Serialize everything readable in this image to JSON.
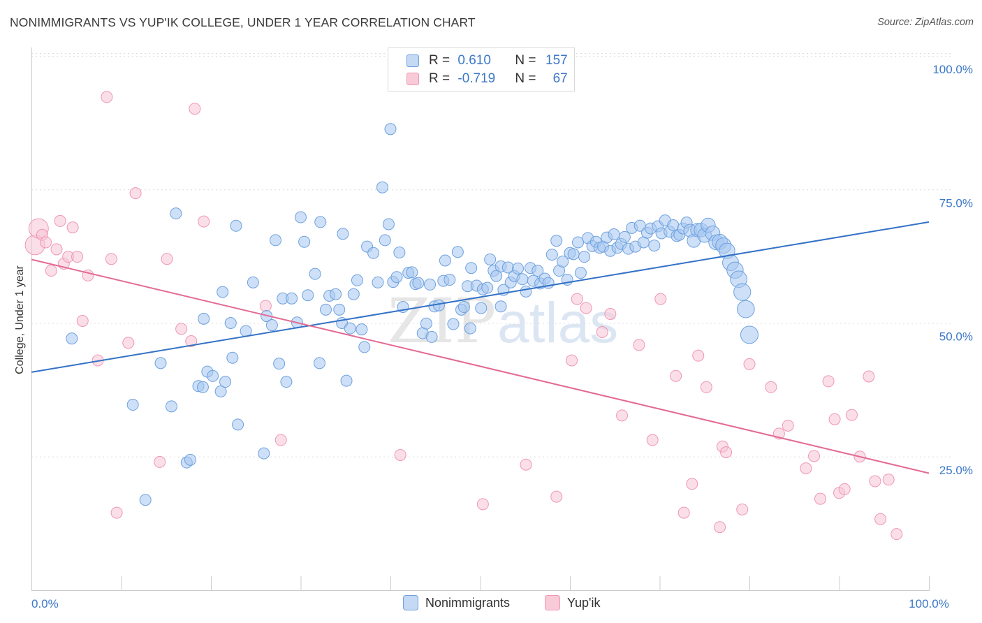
{
  "title": "NONIMMIGRANTS VS YUP'IK COLLEGE, UNDER 1 YEAR CORRELATION CHART",
  "source": "Source: ZipAtlas.com",
  "watermark": {
    "zip": "ZIP",
    "atlas": "atlas"
  },
  "legend": {
    "rows": [
      {
        "r_label": "R = ",
        "r_value": "0.610",
        "n_label": "N = ",
        "n_value": "157",
        "color": "#6ea1de"
      },
      {
        "r_label": "R = ",
        "r_value": "-0.719",
        "n_label": "N = ",
        "n_value": "67",
        "color": "#ef97b2"
      }
    ]
  },
  "bottom_legend": [
    {
      "label": "Nonimmigrants",
      "color": "#6ea1de"
    },
    {
      "label": "Yup'ik",
      "color": "#ef97b2"
    }
  ],
  "chart_data": {
    "type": "scatter",
    "title": "NONIMMIGRANTS VS YUP'IK COLLEGE, UNDER 1 YEAR CORRELATION CHART",
    "xlabel": "",
    "ylabel": "College, Under 1 year",
    "xlim": [
      0,
      100
    ],
    "ylim": [
      0,
      100
    ],
    "x_tick_labels": [
      {
        "value": 0,
        "label": "0.0%"
      },
      {
        "value": 100,
        "label": "100.0%"
      }
    ],
    "y_tick_labels": [
      {
        "value": 25,
        "label": "25.0%"
      },
      {
        "value": 50,
        "label": "50.0%"
      },
      {
        "value": 75,
        "label": "75.0%"
      },
      {
        "value": 100,
        "label": "100.0%"
      }
    ],
    "grid": "horizontal dashed",
    "legend_position": "top-center",
    "series": [
      {
        "name": "Nonimmigrants",
        "color": "#6ea1de",
        "trend": {
          "x": [
            0,
            100
          ],
          "y": [
            40.8,
            68.9
          ]
        },
        "points": [
          [
            4.5,
            47.1
          ],
          [
            11.3,
            34.7
          ],
          [
            12.7,
            16.9
          ],
          [
            14.4,
            42.5
          ],
          [
            15.6,
            34.4
          ],
          [
            16.1,
            70.5
          ],
          [
            17.3,
            23.9
          ],
          [
            17.7,
            24.4
          ],
          [
            18.6,
            38.2
          ],
          [
            19.1,
            38.0
          ],
          [
            19.2,
            50.8
          ],
          [
            19.6,
            40.9
          ],
          [
            20.2,
            40.1
          ],
          [
            21.1,
            37.2
          ],
          [
            21.3,
            55.8
          ],
          [
            21.6,
            39.0
          ],
          [
            22.2,
            50.0
          ],
          [
            22.4,
            43.5
          ],
          [
            22.8,
            68.2
          ],
          [
            23.0,
            31.0
          ],
          [
            23.9,
            48.5
          ],
          [
            24.7,
            57.6
          ],
          [
            25.9,
            25.6
          ],
          [
            26.2,
            51.3
          ],
          [
            26.8,
            49.6
          ],
          [
            27.2,
            65.5
          ],
          [
            27.6,
            42.4
          ],
          [
            28.0,
            54.6
          ],
          [
            28.4,
            39.0
          ],
          [
            29.0,
            54.6
          ],
          [
            29.6,
            50.1
          ],
          [
            30.0,
            69.8
          ],
          [
            30.4,
            65.2
          ],
          [
            30.8,
            55.2
          ],
          [
            31.6,
            59.2
          ],
          [
            32.1,
            42.5
          ],
          [
            32.2,
            68.9
          ],
          [
            32.8,
            52.5
          ],
          [
            33.2,
            55.1
          ],
          [
            33.9,
            55.4
          ],
          [
            34.3,
            52.5
          ],
          [
            34.6,
            50.0
          ],
          [
            34.7,
            66.7
          ],
          [
            35.1,
            39.2
          ],
          [
            35.9,
            55.4
          ],
          [
            36.3,
            58.0
          ],
          [
            36.8,
            48.8
          ],
          [
            37.1,
            45.5
          ],
          [
            37.4,
            64.3
          ],
          [
            38.1,
            63.1
          ],
          [
            38.6,
            57.6
          ],
          [
            39.1,
            75.4
          ],
          [
            39.4,
            65.5
          ],
          [
            39.8,
            68.5
          ],
          [
            40.3,
            57.7
          ],
          [
            40.7,
            58.6
          ],
          [
            41.0,
            63.2
          ],
          [
            41.4,
            53.0
          ],
          [
            42.0,
            59.4
          ],
          [
            42.4,
            59.5
          ],
          [
            42.8,
            57.3
          ],
          [
            43.1,
            57.5
          ],
          [
            43.6,
            48.1
          ],
          [
            44.0,
            49.9
          ],
          [
            44.4,
            57.2
          ],
          [
            44.9,
            53.1
          ],
          [
            45.4,
            53.3
          ],
          [
            45.9,
            57.9
          ],
          [
            46.1,
            61.7
          ],
          [
            46.6,
            58.1
          ],
          [
            47.0,
            49.8
          ],
          [
            47.5,
            63.3
          ],
          [
            47.9,
            52.5
          ],
          [
            48.2,
            53.0
          ],
          [
            48.6,
            56.9
          ],
          [
            49.0,
            60.3
          ],
          [
            49.6,
            57.0
          ],
          [
            50.1,
            52.8
          ],
          [
            50.3,
            56.3
          ],
          [
            50.8,
            56.6
          ],
          [
            51.1,
            61.9
          ],
          [
            51.5,
            59.8
          ],
          [
            51.8,
            58.8
          ],
          [
            52.3,
            60.6
          ],
          [
            52.6,
            56.2
          ],
          [
            53.1,
            60.4
          ],
          [
            53.4,
            57.6
          ],
          [
            53.8,
            58.8
          ],
          [
            54.2,
            60.2
          ],
          [
            54.7,
            58.2
          ],
          [
            55.1,
            55.9
          ],
          [
            55.6,
            60.3
          ],
          [
            55.9,
            57.9
          ],
          [
            56.4,
            59.8
          ],
          [
            56.7,
            57.4
          ],
          [
            57.2,
            58.3
          ],
          [
            57.6,
            57.5
          ],
          [
            58.0,
            62.8
          ],
          [
            58.5,
            65.4
          ],
          [
            58.8,
            59.8
          ],
          [
            59.2,
            61.5
          ],
          [
            59.7,
            58.1
          ],
          [
            60.0,
            63.1
          ],
          [
            60.4,
            62.9
          ],
          [
            60.9,
            65.1
          ],
          [
            61.2,
            59.4
          ],
          [
            61.6,
            62.4
          ],
          [
            62.0,
            65.9
          ],
          [
            62.5,
            64.4
          ],
          [
            62.9,
            65.2
          ],
          [
            63.3,
            64.1
          ],
          [
            63.7,
            64.3
          ],
          [
            64.1,
            66.0
          ],
          [
            64.5,
            63.5
          ],
          [
            64.9,
            66.6
          ],
          [
            65.3,
            64.1
          ],
          [
            65.7,
            64.8
          ],
          [
            66.1,
            66.1
          ],
          [
            66.5,
            63.9
          ],
          [
            66.9,
            67.8
          ],
          [
            67.3,
            64.3
          ],
          [
            67.8,
            68.2
          ],
          [
            68.2,
            65.1
          ],
          [
            68.6,
            66.9
          ],
          [
            69.0,
            67.7
          ],
          [
            69.4,
            64.5
          ],
          [
            69.8,
            68.1
          ],
          [
            70.2,
            66.8
          ],
          [
            70.6,
            69.2
          ],
          [
            71.1,
            67.1
          ],
          [
            71.5,
            68.3
          ],
          [
            71.9,
            66.3
          ],
          [
            72.2,
            66.5
          ],
          [
            72.6,
            67.7
          ],
          [
            73.0,
            68.8
          ],
          [
            73.4,
            67.3
          ],
          [
            73.8,
            65.4
          ],
          [
            74.2,
            67.4
          ],
          [
            74.6,
            67.4
          ],
          [
            75.0,
            66.4
          ],
          [
            75.4,
            68.3
          ],
          [
            75.9,
            66.8
          ],
          [
            76.3,
            65.1
          ],
          [
            76.7,
            65.2
          ],
          [
            77.1,
            64.5
          ],
          [
            77.5,
            63.5
          ],
          [
            77.9,
            61.3
          ],
          [
            78.4,
            59.9
          ],
          [
            78.8,
            58.2
          ],
          [
            79.2,
            55.8
          ],
          [
            79.6,
            52.6
          ],
          [
            80.0,
            47.8
          ],
          [
            40.0,
            86.3
          ],
          [
            35.5,
            49.0
          ],
          [
            44.6,
            47.4
          ],
          [
            48.9,
            49.0
          ],
          [
            52.3,
            53.1
          ]
        ]
      },
      {
        "name": "Yup'ik",
        "color": "#ef97b2",
        "trend": {
          "x": [
            0,
            100
          ],
          "y": [
            61.9,
            21.9
          ]
        },
        "points": [
          [
            0.4,
            64.6
          ],
          [
            0.8,
            67.7
          ],
          [
            1.2,
            66.5
          ],
          [
            1.6,
            65.1
          ],
          [
            2.2,
            59.8
          ],
          [
            2.8,
            63.8
          ],
          [
            3.2,
            69.1
          ],
          [
            3.6,
            61.1
          ],
          [
            4.1,
            62.4
          ],
          [
            4.6,
            67.9
          ],
          [
            5.1,
            62.4
          ],
          [
            5.7,
            50.4
          ],
          [
            6.3,
            58.9
          ],
          [
            7.4,
            43.0
          ],
          [
            8.4,
            92.3
          ],
          [
            8.9,
            62.0
          ],
          [
            9.5,
            14.5
          ],
          [
            10.8,
            46.3
          ],
          [
            11.6,
            74.3
          ],
          [
            14.3,
            24.0
          ],
          [
            15.1,
            62.0
          ],
          [
            16.7,
            48.9
          ],
          [
            17.8,
            46.6
          ],
          [
            18.2,
            90.1
          ],
          [
            19.2,
            69.0
          ],
          [
            27.8,
            28.1
          ],
          [
            26.1,
            53.2
          ],
          [
            41.1,
            25.3
          ],
          [
            50.3,
            16.1
          ],
          [
            55.1,
            23.5
          ],
          [
            58.5,
            17.5
          ],
          [
            60.2,
            43.0
          ],
          [
            60.8,
            54.5
          ],
          [
            61.8,
            52.8
          ],
          [
            63.6,
            48.3
          ],
          [
            64.5,
            51.7
          ],
          [
            65.8,
            32.7
          ],
          [
            67.7,
            45.9
          ],
          [
            69.2,
            28.1
          ],
          [
            70.1,
            54.5
          ],
          [
            71.8,
            40.1
          ],
          [
            72.7,
            14.5
          ],
          [
            73.6,
            19.9
          ],
          [
            74.3,
            43.9
          ],
          [
            75.2,
            38.0
          ],
          [
            76.7,
            11.8
          ],
          [
            77.0,
            26.9
          ],
          [
            77.4,
            25.8
          ],
          [
            79.2,
            15.1
          ],
          [
            80.0,
            42.3
          ],
          [
            82.4,
            38.0
          ],
          [
            83.3,
            29.3
          ],
          [
            84.3,
            30.8
          ],
          [
            86.3,
            22.8
          ],
          [
            87.2,
            25.1
          ],
          [
            87.9,
            17.1
          ],
          [
            88.8,
            39.1
          ],
          [
            89.5,
            32.0
          ],
          [
            90.0,
            18.2
          ],
          [
            90.6,
            18.9
          ],
          [
            91.4,
            32.8
          ],
          [
            92.3,
            25.0
          ],
          [
            93.3,
            40.0
          ],
          [
            94.0,
            20.4
          ],
          [
            94.6,
            13.3
          ],
          [
            95.5,
            20.7
          ],
          [
            96.4,
            10.5
          ]
        ]
      }
    ]
  }
}
